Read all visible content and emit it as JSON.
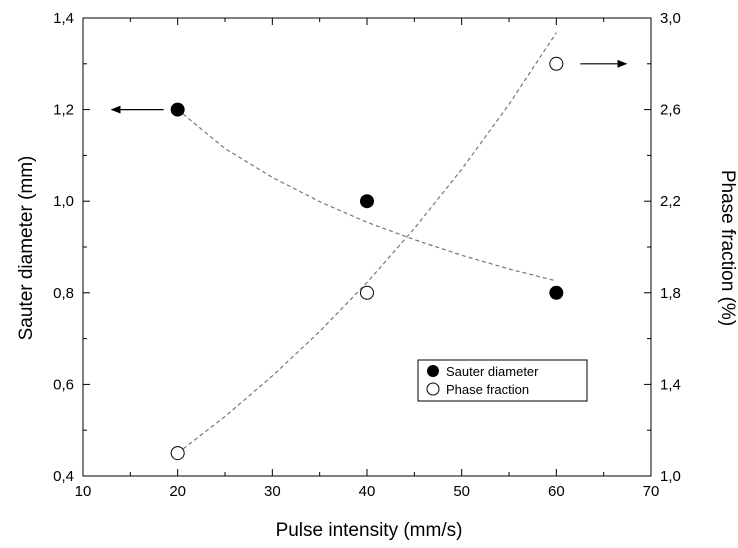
{
  "chart_data": {
    "type": "scatter",
    "xlabel": "Pulse intensity (mm/s)",
    "ylabel_left": "Sauter diameter (mm)",
    "ylabel_right": "Phase fraction (%)",
    "xlim": [
      10,
      70
    ],
    "ylim_left": [
      0.4,
      1.4
    ],
    "ylim_right": [
      1.0,
      3.0
    ],
    "x_ticks": [
      "10",
      "20",
      "30",
      "40",
      "50",
      "60",
      "70"
    ],
    "y_left_ticks": [
      "0,4",
      "0,6",
      "0,8",
      "1,0",
      "1,2",
      "1,4"
    ],
    "y_right_ticks": [
      "1,0",
      "1,4",
      "1,8",
      "2,2",
      "2,6",
      "3,0"
    ],
    "grid": false,
    "legend_position": "center-right",
    "series": [
      {
        "name": "Sauter diameter",
        "axis": "left",
        "marker": "filled-circle",
        "x": [
          20,
          40,
          60
        ],
        "y": [
          1.2,
          1.0,
          0.8
        ],
        "trend_x": [
          20,
          25,
          30,
          35,
          40,
          45,
          50,
          55,
          60
        ],
        "trend_y": [
          1.2,
          1.115,
          1.052,
          0.999,
          0.954,
          0.916,
          0.882,
          0.852,
          0.826
        ]
      },
      {
        "name": "Phase fraction",
        "axis": "right",
        "marker": "open-circle",
        "x": [
          20,
          40,
          60
        ],
        "y": [
          1.1,
          1.8,
          2.8
        ],
        "trend_x": [
          20,
          25,
          30,
          35,
          40,
          45,
          50,
          55,
          60
        ],
        "trend_y": [
          1.1,
          1.26,
          1.437,
          1.631,
          1.845,
          2.081,
          2.339,
          2.623,
          2.936
        ]
      }
    ],
    "arrows": [
      {
        "points_to": "left",
        "series": "Sauter diameter"
      },
      {
        "points_to": "right",
        "series": "Phase fraction"
      }
    ]
  }
}
